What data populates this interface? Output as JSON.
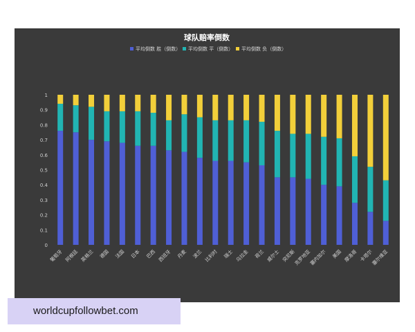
{
  "chart_data": {
    "type": "bar",
    "stacked": true,
    "title": "球队赔率倒数",
    "legend_position": "top",
    "grid": false,
    "xlabel": "",
    "ylabel": "",
    "ylim": [
      0,
      1
    ],
    "yticks": [
      "0",
      "0.1",
      "0.2",
      "0.3",
      "0.4",
      "0.5",
      "0.6",
      "0.7",
      "0.8",
      "0.9",
      "1"
    ],
    "categories": [
      "葡萄牙",
      "阿根廷",
      "英格兰",
      "德国",
      "法国",
      "日本",
      "巴西",
      "西班牙",
      "丹麦",
      "波兰",
      "比利时",
      "瑞士",
      "乌拉圭",
      "荷兰",
      "威尔士",
      "突尼斯",
      "克罗地亚",
      "塞内加尔",
      "美国",
      "摩洛哥",
      "卡塔尔",
      "塞尔维亚"
    ],
    "series": [
      {
        "name": "平均倒数 胜（倒数）",
        "color": "#4f5fd6",
        "values": [
          0.76,
          0.75,
          0.7,
          0.69,
          0.68,
          0.66,
          0.66,
          0.63,
          0.62,
          0.58,
          0.56,
          0.56,
          0.55,
          0.53,
          0.45,
          0.45,
          0.44,
          0.4,
          0.39,
          0.28,
          0.22,
          0.16
        ]
      },
      {
        "name": "平均倒数 平（倒数）",
        "color": "#21b5b3",
        "values": [
          0.18,
          0.18,
          0.22,
          0.2,
          0.21,
          0.23,
          0.22,
          0.2,
          0.25,
          0.27,
          0.27,
          0.27,
          0.28,
          0.29,
          0.31,
          0.29,
          0.3,
          0.32,
          0.32,
          0.31,
          0.3,
          0.27
        ]
      },
      {
        "name": "平均倒数 负（倒数）",
        "color": "#f2cf3a",
        "values": [
          0.06,
          0.07,
          0.08,
          0.11,
          0.11,
          0.11,
          0.12,
          0.17,
          0.13,
          0.15,
          0.17,
          0.17,
          0.17,
          0.18,
          0.24,
          0.26,
          0.26,
          0.28,
          0.29,
          0.41,
          0.48,
          0.57
        ]
      }
    ]
  },
  "watermark": {
    "text": "worldcupfollowbet.com"
  }
}
